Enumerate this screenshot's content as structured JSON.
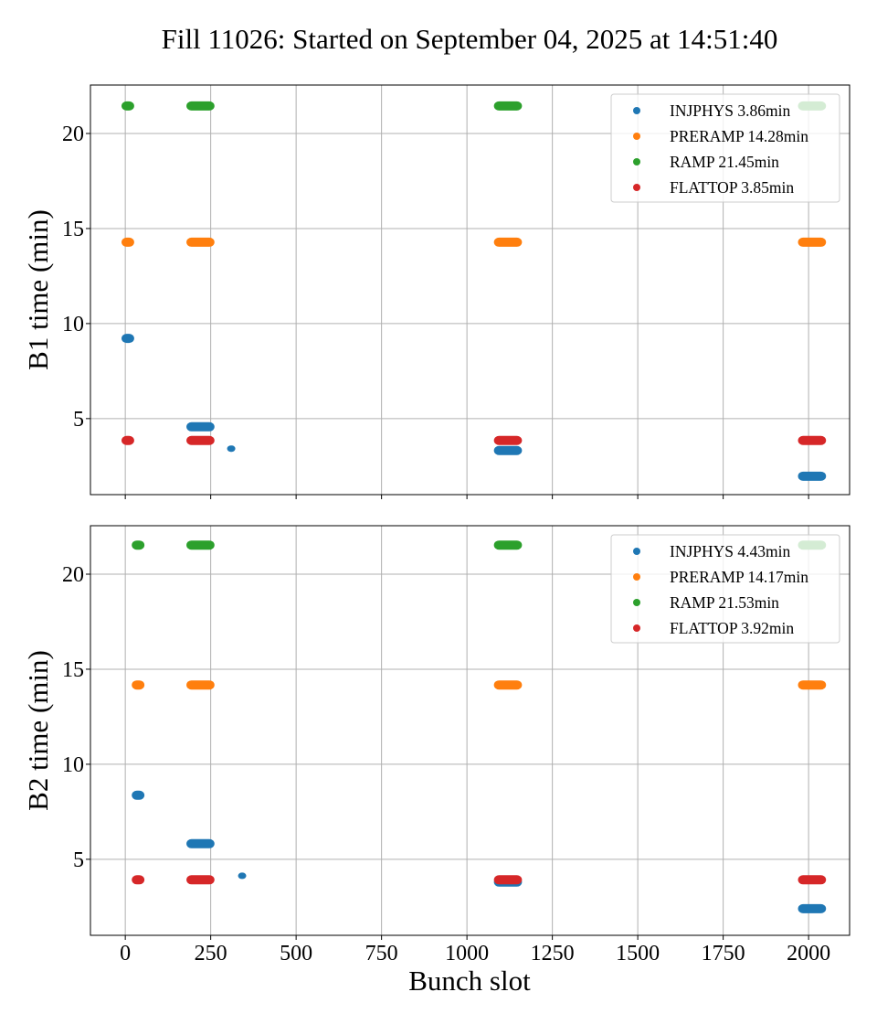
{
  "chart_data": {
    "type": "scatter",
    "title": "Fill 11026: Started on September 04, 2025 at 14:51:40",
    "xlabel": "Bunch slot",
    "xlim": [
      -102,
      2120
    ],
    "xticks": [
      0,
      250,
      500,
      750,
      1000,
      1250,
      1500,
      1750,
      2000
    ],
    "xtick_labels": [
      "0",
      "250",
      "500",
      "750",
      "1000",
      "1250",
      "1500",
      "1750",
      "2000"
    ],
    "grid": true,
    "shared_x": true,
    "panels": [
      {
        "id": "b1",
        "ylabel": "B1 time (min)",
        "ylim": [
          1.0,
          22.55
        ],
        "yticks": [
          5,
          10,
          15,
          20
        ],
        "ytick_labels": [
          "5",
          "10",
          "15",
          "20"
        ],
        "legend_position": "upper-right",
        "series": [
          {
            "name": "INJPHYS",
            "legend": "INJPHYS 3.86min",
            "color": "#1f77b4",
            "groups": [
              {
                "x_start": 5,
                "x_end": 10,
                "y": 9.22
              },
              {
                "x_start": 195,
                "x_end": 245,
                "y": 4.57
              },
              {
                "x_start": 310,
                "x_end": 310,
                "y": 3.42,
                "small": true
              },
              {
                "x_start": 1095,
                "x_end": 1145,
                "y": 3.32
              },
              {
                "x_start": 1985,
                "x_end": 2035,
                "y": 1.97
              }
            ]
          },
          {
            "name": "PRERAMP",
            "legend": "PRERAMP 14.28min",
            "color": "#ff7f0e",
            "groups": [
              {
                "x_start": 5,
                "x_end": 10,
                "y": 14.28
              },
              {
                "x_start": 195,
                "x_end": 245,
                "y": 14.28
              },
              {
                "x_start": 1095,
                "x_end": 1145,
                "y": 14.28
              },
              {
                "x_start": 1985,
                "x_end": 2035,
                "y": 14.28
              }
            ]
          },
          {
            "name": "RAMP",
            "legend": "RAMP 21.45min",
            "color": "#2ca02c",
            "groups": [
              {
                "x_start": 5,
                "x_end": 10,
                "y": 21.45
              },
              {
                "x_start": 195,
                "x_end": 245,
                "y": 21.45
              },
              {
                "x_start": 1095,
                "x_end": 1145,
                "y": 21.45
              },
              {
                "x_start": 1985,
                "x_end": 2035,
                "y": 21.45
              }
            ]
          },
          {
            "name": "FLATTOP",
            "legend": "FLATTOP 3.85min",
            "color": "#d62728",
            "groups": [
              {
                "x_start": 5,
                "x_end": 10,
                "y": 3.85
              },
              {
                "x_start": 195,
                "x_end": 245,
                "y": 3.85
              },
              {
                "x_start": 1095,
                "x_end": 1145,
                "y": 3.85
              },
              {
                "x_start": 1985,
                "x_end": 2035,
                "y": 3.85
              }
            ]
          }
        ]
      },
      {
        "id": "b2",
        "ylabel": "B2 time (min)",
        "ylim": [
          1.0,
          22.55
        ],
        "yticks": [
          5,
          10,
          15,
          20
        ],
        "ytick_labels": [
          "5",
          "10",
          "15",
          "20"
        ],
        "legend_position": "upper-right",
        "series": [
          {
            "name": "INJPHYS",
            "legend": "INJPHYS 4.43min",
            "color": "#1f77b4",
            "groups": [
              {
                "x_start": 35,
                "x_end": 40,
                "y": 8.37
              },
              {
                "x_start": 195,
                "x_end": 245,
                "y": 5.82
              },
              {
                "x_start": 342,
                "x_end": 342,
                "y": 4.13,
                "small": true
              },
              {
                "x_start": 1095,
                "x_end": 1145,
                "y": 3.8
              },
              {
                "x_start": 1985,
                "x_end": 2035,
                "y": 2.4
              }
            ]
          },
          {
            "name": "PRERAMP",
            "legend": "PRERAMP 14.17min",
            "color": "#ff7f0e",
            "groups": [
              {
                "x_start": 35,
                "x_end": 40,
                "y": 14.17
              },
              {
                "x_start": 195,
                "x_end": 245,
                "y": 14.17
              },
              {
                "x_start": 1095,
                "x_end": 1145,
                "y": 14.17
              },
              {
                "x_start": 1985,
                "x_end": 2035,
                "y": 14.17
              }
            ]
          },
          {
            "name": "RAMP",
            "legend": "RAMP 21.53min",
            "color": "#2ca02c",
            "groups": [
              {
                "x_start": 35,
                "x_end": 40,
                "y": 21.53
              },
              {
                "x_start": 195,
                "x_end": 245,
                "y": 21.53
              },
              {
                "x_start": 1095,
                "x_end": 1145,
                "y": 21.53
              },
              {
                "x_start": 1985,
                "x_end": 2035,
                "y": 21.53
              }
            ]
          },
          {
            "name": "FLATTOP",
            "legend": "FLATTOP 3.92min",
            "color": "#d62728",
            "groups": [
              {
                "x_start": 35,
                "x_end": 40,
                "y": 3.92
              },
              {
                "x_start": 195,
                "x_end": 245,
                "y": 3.92
              },
              {
                "x_start": 1095,
                "x_end": 1145,
                "y": 3.92
              },
              {
                "x_start": 1985,
                "x_end": 2035,
                "y": 3.92
              }
            ]
          }
        ]
      }
    ]
  }
}
